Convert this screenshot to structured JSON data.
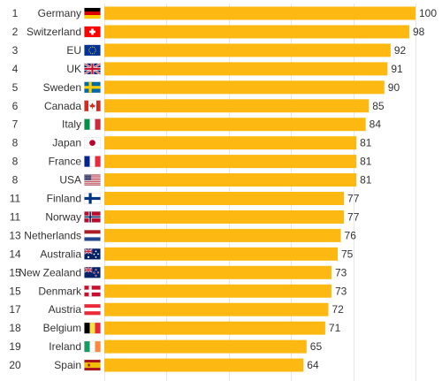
{
  "chart_data": {
    "type": "bar",
    "orientation": "horizontal",
    "title": "",
    "xlabel": "",
    "ylabel": "",
    "xlim": [
      0,
      100
    ],
    "grid": true,
    "bar_color": "#fdb912",
    "rows": [
      {
        "rank": "1",
        "country": "Germany",
        "value": 100,
        "flag": "germany-flag-icon"
      },
      {
        "rank": "2",
        "country": "Switzerland",
        "value": 98,
        "flag": "switzerland-flag-icon"
      },
      {
        "rank": "3",
        "country": "EU",
        "value": 92,
        "flag": "eu-flag-icon"
      },
      {
        "rank": "4",
        "country": "UK",
        "value": 91,
        "flag": "uk-flag-icon"
      },
      {
        "rank": "5",
        "country": "Sweden",
        "value": 90,
        "flag": "sweden-flag-icon"
      },
      {
        "rank": "6",
        "country": "Canada",
        "value": 85,
        "flag": "canada-flag-icon"
      },
      {
        "rank": "7",
        "country": "Italy",
        "value": 84,
        "flag": "italy-flag-icon"
      },
      {
        "rank": "8",
        "country": "Japan",
        "value": 81,
        "flag": "japan-flag-icon"
      },
      {
        "rank": "8",
        "country": "France",
        "value": 81,
        "flag": "france-flag-icon"
      },
      {
        "rank": "8",
        "country": "USA",
        "value": 81,
        "flag": "usa-flag-icon"
      },
      {
        "rank": "11",
        "country": "Finland",
        "value": 77,
        "flag": "finland-flag-icon"
      },
      {
        "rank": "11",
        "country": "Norway",
        "value": 77,
        "flag": "norway-flag-icon"
      },
      {
        "rank": "13",
        "country": "Netherlands",
        "value": 76,
        "flag": "netherlands-flag-icon"
      },
      {
        "rank": "14",
        "country": "Australia",
        "value": 75,
        "flag": "australia-flag-icon"
      },
      {
        "rank": "15",
        "country": "New Zealand",
        "value": 73,
        "flag": "new-zealand-flag-icon"
      },
      {
        "rank": "15",
        "country": "Denmark",
        "value": 73,
        "flag": "denmark-flag-icon"
      },
      {
        "rank": "17",
        "country": "Austria",
        "value": 72,
        "flag": "austria-flag-icon"
      },
      {
        "rank": "18",
        "country": "Belgium",
        "value": 71,
        "flag": "belgium-flag-icon"
      },
      {
        "rank": "19",
        "country": "Ireland",
        "value": 65,
        "flag": "ireland-flag-icon"
      },
      {
        "rank": "20",
        "country": "Spain",
        "value": 64,
        "flag": "spain-flag-icon"
      }
    ]
  }
}
